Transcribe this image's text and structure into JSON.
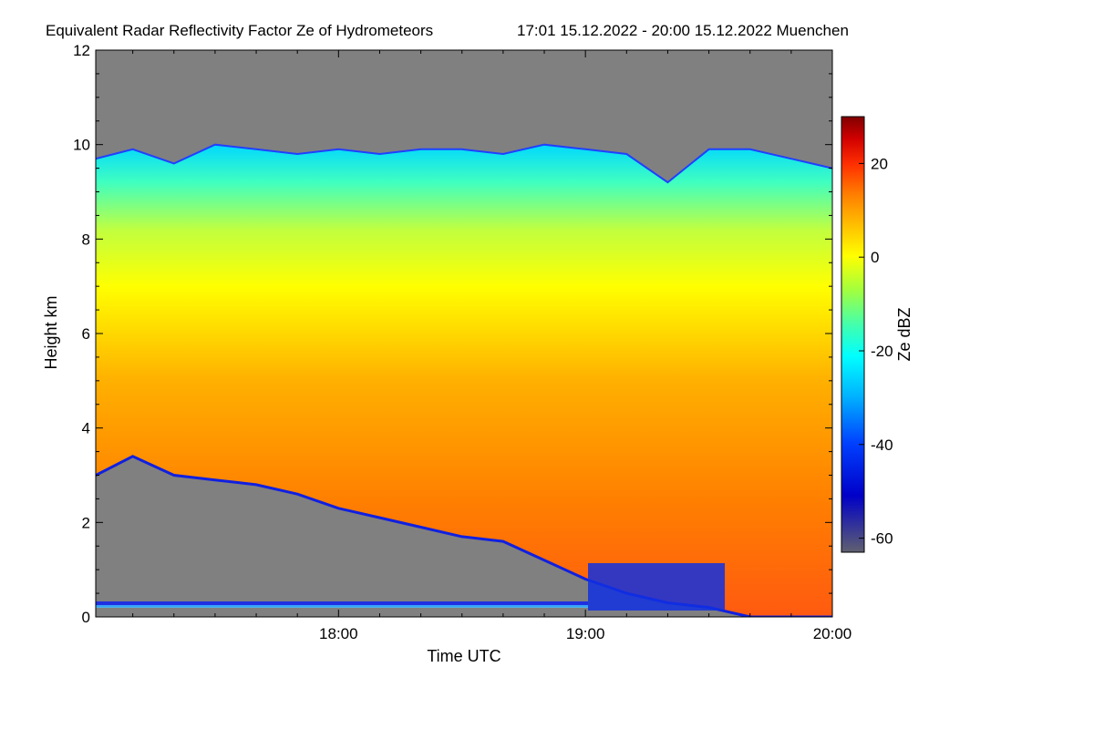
{
  "chart_data": {
    "type": "heatmap",
    "title": "Equivalent Radar Reflectivity Factor Ze of Hydrometeors",
    "time_range_label": "17:01 15.12.2022 - 20:00 15.12.2022 Muenchen",
    "xlabel": "Time UTC",
    "ylabel": "Height km",
    "x_start": "17:01",
    "x_end": "20:00",
    "x_ticks": [
      "18:00",
      "19:00",
      "20:00"
    ],
    "ylim": [
      0,
      12
    ],
    "y_ticks": [
      0,
      2,
      4,
      6,
      8,
      10,
      12
    ],
    "colorbar": {
      "label": "Ze dBZ",
      "range": [
        -63,
        30
      ],
      "ticks": [
        -60,
        -40,
        -20,
        0,
        20
      ],
      "colors": [
        "#606070",
        "#0000c8",
        "#0040ff",
        "#00b4ff",
        "#00ffff",
        "#40ffb0",
        "#a0ff40",
        "#ffff00",
        "#ffc000",
        "#ff8000",
        "#ff3000",
        "#d00000",
        "#800000"
      ]
    },
    "background_color": "#808080",
    "series": [
      {
        "name": "cloud_top_km",
        "x": [
          "17:01",
          "17:10",
          "17:20",
          "17:30",
          "17:40",
          "17:50",
          "18:00",
          "18:10",
          "18:20",
          "18:30",
          "18:40",
          "18:50",
          "19:00",
          "19:10",
          "19:20",
          "19:30",
          "19:40",
          "19:50",
          "20:00"
        ],
        "values": [
          9.7,
          9.9,
          9.6,
          10.0,
          9.9,
          9.8,
          9.9,
          9.8,
          9.9,
          9.9,
          9.8,
          10.0,
          9.9,
          9.8,
          9.2,
          9.9,
          9.9,
          9.7,
          9.5
        ]
      },
      {
        "name": "cloud_base_km",
        "x": [
          "17:01",
          "17:10",
          "17:20",
          "17:30",
          "17:40",
          "17:50",
          "18:00",
          "18:10",
          "18:20",
          "18:30",
          "18:40",
          "18:50",
          "19:00",
          "19:10",
          "19:20",
          "19:30",
          "19:40",
          "19:50",
          "20:00"
        ],
        "values": [
          3.0,
          3.4,
          3.0,
          2.9,
          2.8,
          2.6,
          2.3,
          2.1,
          1.9,
          1.7,
          1.6,
          1.2,
          0.8,
          0.5,
          0.3,
          0.2,
          0.0,
          0.0,
          0.0
        ]
      }
    ]
  }
}
